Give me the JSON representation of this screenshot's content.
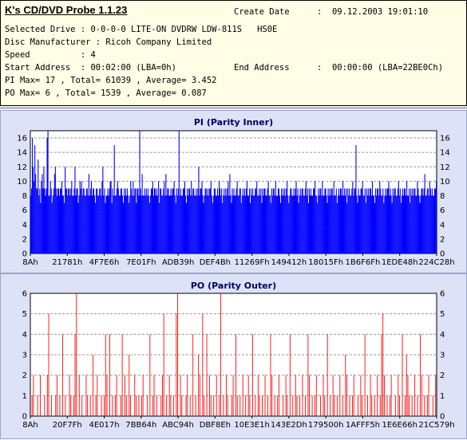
{
  "header": {
    "app_title": "K's CD/DVD Probe 1.1.23",
    "create_date_label": "Create Date",
    "create_date_value": ":  09.12.2003 19:01:10",
    "selected_drive": "Selected Drive : 0-0-0-0 LITE-ON DVDRW LDW-811S   HS0E",
    "disc_manufacturer": "Disc Manufacturer : Ricoh Company Limited",
    "speed": "Speed          : 4",
    "start_address": "Start Address  : 00:02:00 (LBA=0h)",
    "end_address_label": "End Address",
    "end_address_value": ":  00:00:00 (LBA=22BE0Ch)",
    "pi_stats": "PI Max= 17 , Total= 61039 , Average= 3.452",
    "po_stats": "PO Max= 6 , Total= 1539 , Average= 0.087"
  },
  "chart_data": [
    {
      "type": "bar",
      "title": "PI (Parity Inner)",
      "ylim": [
        0,
        17
      ],
      "yticks": [
        0,
        2,
        4,
        6,
        8,
        10,
        12,
        14,
        16
      ],
      "xtick_labels": [
        "8Ah",
        "21781h",
        "4F7E6h",
        "7E01Fh",
        "ADB39h",
        "DEF4Bh",
        "11269Fh",
        "149412h",
        "18015Fh",
        "1B6F6Fh",
        "1EDE48h",
        "224C28h"
      ],
      "max": 17,
      "average": 3.452,
      "total": 61039,
      "color": "#0000ff",
      "values": [
        8,
        9,
        16,
        12,
        10,
        15,
        11,
        9,
        9,
        13,
        8,
        9,
        7,
        10,
        11,
        9,
        12,
        9,
        8,
        9,
        16,
        17,
        8,
        8,
        10,
        9,
        7,
        8,
        9,
        11,
        12,
        9,
        8,
        9,
        9,
        8,
        9,
        9,
        10,
        8,
        8,
        7,
        12,
        9,
        9,
        8,
        9,
        9,
        8,
        9,
        10,
        8,
        8,
        9,
        12,
        8,
        9,
        9,
        7,
        8,
        10,
        9,
        10,
        8,
        9,
        9,
        8,
        8,
        9,
        9,
        8,
        11,
        8,
        9,
        10,
        8,
        9,
        9,
        8,
        7,
        9,
        9,
        8,
        8,
        9,
        9,
        8,
        10,
        12,
        8,
        9,
        7,
        8,
        8,
        9,
        8,
        9,
        10,
        10,
        7,
        9,
        8,
        15,
        8,
        8,
        9,
        10,
        9,
        8,
        8,
        9,
        9,
        8,
        7,
        9,
        8,
        9,
        8,
        9,
        8,
        7,
        8,
        10,
        9,
        8,
        10,
        8,
        9,
        9,
        7,
        9,
        9,
        8,
        17,
        9,
        8,
        11,
        8,
        8,
        9,
        8,
        9,
        8,
        9,
        8,
        7,
        8,
        9,
        9,
        10,
        8,
        9,
        9,
        8,
        9,
        8,
        10,
        7,
        9,
        9,
        8,
        8,
        9,
        10,
        8,
        11,
        8,
        9,
        9,
        8,
        8,
        9,
        8,
        9,
        9,
        10,
        8,
        7,
        9,
        8,
        9,
        17,
        8,
        9,
        8,
        8,
        9,
        9,
        10,
        8,
        7,
        9,
        8,
        9,
        9,
        8,
        10,
        8,
        9,
        9,
        8,
        8,
        9,
        8,
        9,
        12,
        8,
        9,
        9,
        10,
        8,
        7,
        8,
        9,
        9,
        8,
        9,
        8,
        9,
        9,
        10,
        8,
        7,
        8,
        9,
        9,
        8,
        8,
        9,
        8,
        10,
        9,
        8,
        9,
        7,
        8,
        9,
        8,
        9,
        8,
        9,
        10,
        8,
        11,
        8,
        7,
        9,
        8,
        9,
        8,
        8,
        9,
        10,
        8,
        8,
        9,
        9,
        7,
        8,
        9,
        8,
        9,
        8,
        9,
        10,
        8,
        8,
        9,
        7,
        9,
        8,
        9,
        8,
        8,
        9,
        9,
        10,
        8,
        8,
        9,
        8,
        9,
        7,
        9,
        8,
        9,
        9,
        8,
        8,
        9,
        10,
        8,
        8,
        7,
        9,
        8,
        9,
        9,
        8,
        10,
        8,
        8,
        9,
        9,
        8,
        7,
        9,
        8,
        9,
        8,
        9,
        8,
        9,
        10,
        8,
        7,
        8,
        9,
        9,
        8,
        8,
        9,
        8,
        9,
        10,
        8,
        9,
        7,
        8,
        9,
        8,
        9,
        9,
        8,
        8,
        9,
        10,
        8,
        9,
        7,
        9,
        8,
        9,
        8,
        8,
        9,
        9,
        10,
        8,
        8,
        7,
        9,
        8,
        9,
        9,
        8,
        10,
        8,
        8,
        9,
        9,
        8,
        7,
        9,
        8,
        9,
        8,
        9,
        9,
        8,
        10,
        8,
        8,
        9,
        7,
        8,
        9,
        8,
        9,
        9,
        8,
        10,
        8,
        9,
        8,
        9,
        7,
        9,
        8,
        9,
        8,
        8,
        9,
        10,
        8,
        9,
        9,
        15,
        8,
        7,
        9,
        8,
        8,
        9,
        9,
        10,
        8,
        8,
        9,
        7,
        9,
        8,
        9,
        8,
        9,
        9,
        8,
        10,
        8,
        8,
        7,
        9,
        8,
        9,
        9,
        8,
        10,
        9,
        8,
        8,
        9,
        7,
        8,
        9,
        8,
        9,
        9,
        10,
        8,
        9,
        8,
        7,
        9,
        8,
        9,
        9,
        8,
        8,
        9,
        10,
        8,
        9,
        7,
        8,
        9,
        8,
        9,
        9,
        8,
        10,
        8,
        8,
        9,
        7,
        9,
        8,
        9,
        8,
        9,
        9,
        8,
        8,
        10,
        9,
        8,
        7,
        8,
        9,
        9,
        8,
        9,
        11,
        8,
        8,
        9,
        9,
        8,
        10,
        9,
        8,
        9,
        8,
        8,
        9,
        9,
        10
      ]
    },
    {
      "type": "bar",
      "title": "PO (Parity Outer)",
      "ylim": [
        0,
        6
      ],
      "yticks": [
        0,
        1,
        2,
        3,
        4,
        5,
        6
      ],
      "xtick_labels": [
        "8Ah",
        "20F7Fh",
        "4E017h",
        "7BB64h",
        "ABC94h",
        "DBF8Eh",
        "10E3E1h",
        "143E2Dh",
        "179500h",
        "1AFFF5h",
        "1E6E66h",
        "21C579h"
      ],
      "max": 6,
      "average": 0.087,
      "total": 1539,
      "color": "#ff0000",
      "values": [
        0,
        1,
        2,
        0,
        0,
        1,
        0,
        2,
        0,
        0,
        1,
        0,
        2,
        5,
        0,
        1,
        0,
        0,
        1,
        2,
        0,
        1,
        0,
        4,
        0,
        1,
        0,
        0,
        2,
        1,
        0,
        1,
        4,
        6,
        0,
        2,
        0,
        1,
        0,
        0,
        2,
        1,
        0,
        1,
        0,
        3,
        0,
        1,
        2,
        0,
        0,
        1,
        0,
        1,
        4,
        2,
        0,
        4,
        0,
        1,
        0,
        1,
        2,
        0,
        0,
        1,
        4,
        0,
        2,
        1,
        0,
        3,
        1,
        0,
        0,
        2,
        1,
        0,
        1,
        0,
        1,
        2,
        0,
        0,
        1,
        0,
        4,
        0,
        1,
        2,
        0,
        1,
        0,
        0,
        1,
        2,
        5,
        0,
        1,
        0,
        2,
        1,
        0,
        1,
        0,
        5,
        6,
        0,
        2,
        1,
        0,
        0,
        1,
        2,
        0,
        1,
        0,
        4,
        0,
        1,
        0,
        3,
        2,
        0,
        5,
        1,
        0,
        4,
        0,
        2,
        1,
        0,
        1,
        0,
        2,
        0,
        1,
        6,
        0,
        1,
        0,
        2,
        1,
        0,
        0,
        1,
        2,
        0,
        4,
        1,
        0,
        1,
        0,
        2,
        0,
        1,
        0,
        2,
        1,
        0,
        4,
        0,
        1,
        0,
        2,
        1,
        0,
        1,
        0,
        2,
        0,
        1,
        0,
        4,
        2,
        0,
        1,
        0,
        1,
        2,
        0,
        0,
        1,
        0,
        2,
        1,
        0,
        4,
        0,
        1,
        0,
        2,
        1,
        0,
        1,
        0,
        2,
        0,
        1,
        0,
        4,
        2,
        0,
        1,
        0,
        1,
        2,
        0,
        0,
        1,
        0,
        2,
        1,
        0,
        4,
        0,
        1,
        0,
        2,
        1,
        0,
        1,
        0,
        2,
        0,
        1,
        0,
        3,
        2,
        0,
        1,
        0,
        1,
        2,
        0,
        0,
        1,
        0,
        2,
        1,
        0,
        4,
        0,
        1,
        0,
        2,
        1,
        0,
        1,
        0,
        2,
        0,
        1,
        4,
        5,
        2,
        0,
        1,
        0,
        1,
        2,
        0,
        0,
        1,
        0,
        2,
        1,
        0,
        4,
        0,
        1,
        3,
        2,
        1,
        0,
        1,
        0,
        2,
        0,
        1,
        0,
        4,
        2,
        0,
        1,
        0,
        1,
        2,
        0,
        0,
        1,
        0,
        2
      ]
    }
  ]
}
